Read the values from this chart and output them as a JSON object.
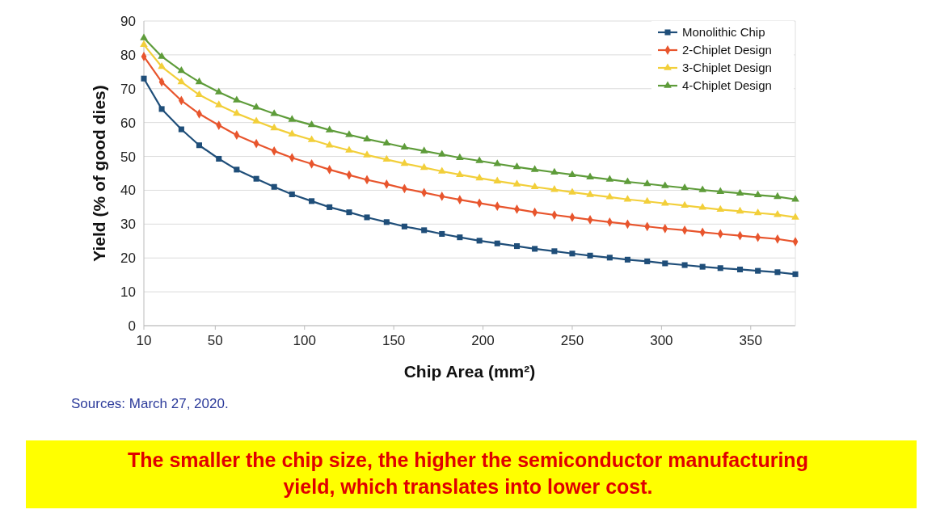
{
  "chart_data": {
    "type": "line",
    "xlabel": "Chip Area (mm²)",
    "ylabel": "Yield (% of good dies)",
    "x": [
      10,
      20,
      31,
      41,
      52,
      62,
      73,
      83,
      93,
      104,
      114,
      125,
      135,
      146,
      156,
      167,
      177,
      187,
      198,
      208,
      219,
      229,
      240,
      250,
      260,
      271,
      281,
      292,
      302,
      313,
      323,
      333,
      344,
      354,
      365,
      375
    ],
    "series": [
      {
        "name": "Monolithic Chip",
        "color": "#1f4e79",
        "marker": "square",
        "values": [
          73,
          64,
          58,
          53.3,
          49.3,
          46.1,
          43.4,
          41,
          38.8,
          36.8,
          35,
          33.5,
          32,
          30.6,
          29.3,
          28.2,
          27.1,
          26.1,
          25.1,
          24.3,
          23.5,
          22.7,
          22,
          21.3,
          20.7,
          20.1,
          19.5,
          19,
          18.4,
          17.9,
          17.4,
          17,
          16.6,
          16.2,
          15.8,
          15.2
        ]
      },
      {
        "name": "2-Chiplet Design",
        "color": "#e8552d",
        "marker": "diamond",
        "values": [
          79.5,
          72,
          66.5,
          62.6,
          59.2,
          56.3,
          53.8,
          51.6,
          49.6,
          47.8,
          46.1,
          44.5,
          43.1,
          41.8,
          40.5,
          39.3,
          38.2,
          37.2,
          36.2,
          35.3,
          34.4,
          33.5,
          32.7,
          32,
          31.3,
          30.6,
          30,
          29.3,
          28.7,
          28.2,
          27.6,
          27.1,
          26.6,
          26.1,
          25.6,
          24.8
        ]
      },
      {
        "name": "3-Chiplet Design",
        "color": "#f2cf3a",
        "marker": "triangle",
        "values": [
          83,
          76.5,
          72,
          68.2,
          65.2,
          62.7,
          60.4,
          58.4,
          56.6,
          54.9,
          53.3,
          51.8,
          50.4,
          49.1,
          47.9,
          46.7,
          45.6,
          44.6,
          43.6,
          42.7,
          41.8,
          41,
          40.2,
          39.4,
          38.7,
          38,
          37.3,
          36.7,
          36.1,
          35.5,
          34.9,
          34.3,
          33.8,
          33.3,
          32.8,
          32
        ]
      },
      {
        "name": "4-Chiplet Design",
        "color": "#5e9c3a",
        "marker": "triangle",
        "values": [
          85,
          79.5,
          75.3,
          72,
          69,
          66.6,
          64.5,
          62.6,
          60.9,
          59.3,
          57.8,
          56.4,
          55.1,
          53.9,
          52.7,
          51.6,
          50.6,
          49.6,
          48.7,
          47.8,
          46.9,
          46.1,
          45.3,
          44.6,
          43.9,
          43.2,
          42.5,
          41.9,
          41.3,
          40.7,
          40.1,
          39.6,
          39.1,
          38.6,
          38.1,
          37.3
        ]
      }
    ],
    "xlim": [
      10,
      375
    ],
    "xticks": [
      10,
      50,
      100,
      150,
      200,
      250,
      300,
      350
    ],
    "ylim": [
      0,
      90
    ],
    "yticks": [
      0,
      10,
      20,
      30,
      40,
      50,
      60,
      70,
      80,
      90
    ],
    "grid": "y",
    "legend": "top right",
    "annotations": [
      "Sources: March 27, 2020.",
      "The smaller the chip size, the higher the semiconductor manufacturing yield, which translates into lower cost."
    ]
  }
}
